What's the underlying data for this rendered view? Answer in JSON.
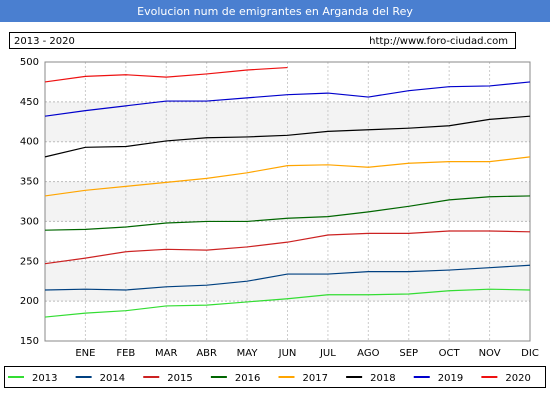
{
  "chart_data": {
    "type": "line",
    "title": "Evolucion num de emigrantes en Arganda del Rey",
    "period": "2013 - 2020",
    "source": "http://www.foro-ciudad.com",
    "categories": [
      null,
      "ENE",
      "FEB",
      "MAR",
      "ABR",
      "MAY",
      "JUN",
      "JUL",
      "AGO",
      "SEP",
      "OCT",
      "NOV",
      "DIC"
    ],
    "ylim": [
      150,
      500
    ],
    "yticks": [
      150,
      200,
      250,
      300,
      350,
      400,
      450,
      500
    ],
    "grid": true,
    "series": [
      {
        "name": "2013",
        "color": "#33dd33",
        "values": [
          180,
          185,
          188,
          194,
          195,
          199,
          203,
          208,
          208,
          209,
          213,
          215,
          214
        ]
      },
      {
        "name": "2014",
        "color": "#004080",
        "values": [
          214,
          215,
          214,
          218,
          220,
          225,
          234,
          234,
          237,
          237,
          239,
          242,
          245
        ]
      },
      {
        "name": "2015",
        "color": "#cc2222",
        "values": [
          247,
          254,
          262,
          265,
          264,
          268,
          274,
          283,
          285,
          285,
          288,
          288,
          287
        ]
      },
      {
        "name": "2016",
        "color": "#006600",
        "values": [
          289,
          290,
          293,
          298,
          300,
          300,
          304,
          306,
          312,
          319,
          327,
          331,
          332
        ]
      },
      {
        "name": "2017",
        "color": "#ffa500",
        "values": [
          332,
          339,
          344,
          349,
          354,
          361,
          370,
          371,
          368,
          373,
          375,
          375,
          381
        ]
      },
      {
        "name": "2018",
        "color": "#000000",
        "values": [
          381,
          393,
          394,
          401,
          405,
          406,
          408,
          413,
          415,
          417,
          420,
          428,
          432
        ]
      },
      {
        "name": "2019",
        "color": "#0000cc",
        "values": [
          432,
          439,
          445,
          451,
          451,
          455,
          459,
          461,
          456,
          464,
          469,
          470,
          475
        ]
      },
      {
        "name": "2020",
        "color": "#ee1111",
        "values": [
          475,
          482,
          484,
          481,
          485,
          490,
          493,
          null,
          null,
          null,
          null,
          null,
          null
        ]
      }
    ]
  }
}
